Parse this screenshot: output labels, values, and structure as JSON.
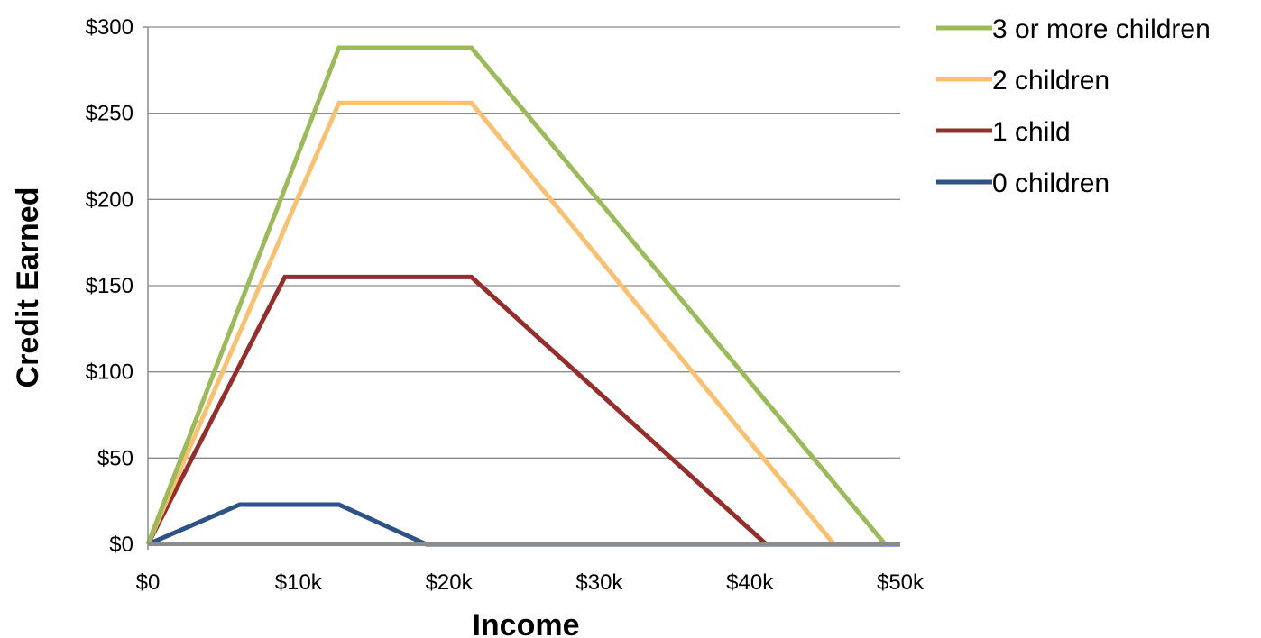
{
  "chart_data": {
    "type": "line",
    "title": "",
    "xlabel": "Income",
    "ylabel": "Credit Earned",
    "xlim": [
      0,
      50000
    ],
    "ylim": [
      0,
      300
    ],
    "x_ticks": [
      0,
      10000,
      20000,
      30000,
      40000,
      50000
    ],
    "x_tick_labels": [
      "$0",
      "$10k",
      "$20k",
      "$30k",
      "$40k",
      "$50k"
    ],
    "y_ticks": [
      0,
      50,
      100,
      150,
      200,
      250,
      300
    ],
    "y_tick_labels": [
      "$0",
      "$50",
      "$100",
      "$150",
      "$200",
      "$250",
      "$300"
    ],
    "grid": "horizontal",
    "legend_position": "right",
    "series": [
      {
        "name": "3 or more children",
        "color": "#9bbb59",
        "x": [
          0,
          12700,
          21500,
          49000
        ],
        "y": [
          0,
          288,
          288,
          0
        ]
      },
      {
        "name": "2 children",
        "color": "#fac06e",
        "x": [
          0,
          12700,
          21500,
          45600
        ],
        "y": [
          0,
          256,
          256,
          0
        ]
      },
      {
        "name": "1 child",
        "color": "#962d2a",
        "x": [
          0,
          9100,
          21500,
          41100
        ],
        "y": [
          0,
          155,
          155,
          0
        ]
      },
      {
        "name": "0 children",
        "color": "#2e5286",
        "x": [
          0,
          6100,
          12700,
          18500,
          50000
        ],
        "y": [
          0,
          23,
          23,
          0,
          0
        ]
      }
    ]
  }
}
